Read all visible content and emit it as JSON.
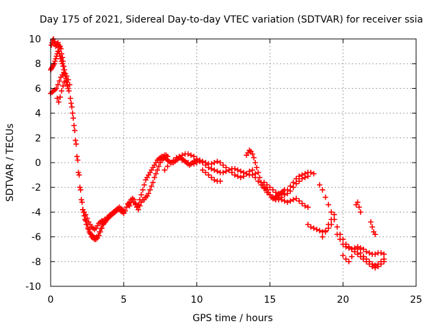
{
  "chart_data": {
    "type": "scatter",
    "title": "Day 175 of 2021, Sidereal Day-to-day VTEC variation (SDTVAR) for receiver ssia",
    "xlabel": "GPS time / hours",
    "ylabel": "SDTVAR / TECUs",
    "xlim": [
      0,
      25
    ],
    "ylim": [
      -10,
      10
    ],
    "xticks": [
      0,
      5,
      10,
      15,
      20,
      25
    ],
    "yticks": [
      -10,
      -8,
      -6,
      -4,
      -2,
      0,
      2,
      4,
      6,
      8,
      10
    ],
    "grid": true,
    "marker": "+",
    "series": [
      {
        "name": "SDTVAR",
        "color": "#ff0000",
        "x": [
          0.05,
          0.1,
          0.15,
          0.2,
          0.25,
          0.3,
          0.35,
          0.4,
          0.45,
          0.5,
          0.55,
          0.6,
          0.65,
          0.7,
          0.75,
          0.8,
          0.85,
          0.9,
          0.95,
          1.0,
          0.0,
          0.05,
          0.1,
          0.15,
          0.2,
          0.25,
          0.3,
          0.35,
          0.4,
          0.45,
          0.5,
          0.55,
          0.6,
          0.65,
          0.7,
          0.75,
          0.8,
          0.85,
          0.9,
          0.95,
          1.0,
          1.05,
          1.1,
          1.15,
          1.2,
          0.0,
          0.1,
          0.2,
          0.3,
          0.4,
          0.5,
          0.6,
          0.7,
          0.8,
          0.9,
          1.0,
          1.1,
          1.2,
          1.3,
          0.45,
          0.55,
          0.65,
          0.75,
          0.85,
          0.95,
          1.05,
          1.15,
          1.25,
          1.35,
          1.45,
          1.55,
          1.65,
          1.75,
          1.85,
          1.95,
          2.05,
          2.15,
          2.25,
          2.35,
          2.45,
          2.55,
          2.65,
          2.75,
          2.85,
          2.95,
          3.05,
          3.15,
          3.25,
          3.35,
          3.45,
          3.55,
          3.65,
          3.75,
          3.85,
          3.95,
          1.4,
          1.5,
          1.6,
          1.7,
          1.8,
          1.9,
          2.0,
          2.1,
          2.2,
          2.3,
          2.4,
          2.5,
          2.6,
          2.7,
          2.8,
          2.9,
          3.0,
          3.1,
          3.2,
          3.3,
          3.4,
          3.5,
          3.6,
          3.7,
          3.8,
          3.9,
          4.0,
          4.1,
          4.2,
          4.3,
          4.4,
          4.5,
          4.6,
          4.7,
          4.8,
          4.9,
          5.0,
          2.2,
          2.3,
          2.4,
          2.5,
          2.6,
          2.7,
          2.8,
          2.9,
          3.0,
          3.1,
          3.2,
          3.3,
          3.4,
          3.5,
          3.6,
          3.7,
          3.8,
          3.9,
          4.0,
          4.1,
          4.2,
          4.3,
          4.4,
          4.5,
          4.6,
          4.7,
          4.8,
          4.9,
          5.0,
          5.1,
          5.2,
          5.3,
          5.4,
          5.5,
          5.6,
          5.7,
          5.8,
          5.9,
          6.0,
          6.1,
          6.2,
          6.3,
          6.4,
          6.5,
          6.6,
          6.7,
          6.8,
          6.9,
          7.0,
          7.1,
          7.2,
          7.3,
          7.4,
          7.5,
          7.6,
          7.7,
          7.8,
          7.9,
          8.0,
          5.3,
          5.4,
          5.5,
          5.6,
          5.7,
          5.8,
          5.9,
          6.0,
          6.1,
          6.2,
          6.3,
          6.4,
          6.5,
          6.6,
          6.7,
          6.8,
          6.9,
          7.0,
          7.1,
          7.2,
          7.3,
          7.4,
          7.5,
          7.6,
          7.7,
          7.8,
          7.9,
          8.0,
          8.1,
          8.2,
          8.3,
          8.4,
          8.5,
          8.6,
          8.7,
          8.8,
          8.9,
          9.0,
          9.1,
          9.2,
          9.3,
          9.4,
          9.5,
          9.6,
          9.7,
          9.8,
          9.9,
          10.0,
          7.8,
          8.0,
          8.2,
          8.4,
          8.6,
          8.8,
          9.0,
          9.2,
          9.4,
          9.6,
          9.8,
          10.0,
          10.2,
          10.4,
          10.6,
          10.8,
          11.0,
          11.2,
          11.4,
          11.6,
          11.8,
          12.0,
          12.2,
          12.4,
          12.6,
          12.8,
          13.0,
          13.2,
          13.4,
          13.6,
          13.8,
          9.0,
          9.2,
          9.4,
          9.6,
          9.8,
          10.0,
          10.2,
          10.4,
          10.6,
          10.8,
          11.0,
          11.2,
          11.4,
          11.6,
          11.8,
          12.0,
          12.2,
          12.4,
          12.6,
          12.8,
          13.0,
          13.2,
          13.4,
          13.6,
          13.8,
          14.0,
          10.4,
          10.6,
          10.8,
          11.0,
          11.2,
          11.4,
          11.6,
          13.4,
          13.5,
          13.6,
          13.7,
          13.8,
          13.9,
          14.0,
          14.1,
          14.2,
          14.3,
          14.4,
          14.5,
          14.6,
          14.7,
          14.8,
          14.9,
          15.0,
          15.1,
          15.2,
          15.3,
          15.4,
          15.5,
          15.6,
          15.7,
          15.8,
          15.9,
          16.0,
          14.0,
          14.2,
          14.4,
          14.6,
          14.8,
          15.0,
          15.2,
          15.4,
          15.6,
          15.8,
          16.0,
          16.2,
          16.4,
          16.6,
          16.8,
          17.0,
          17.2,
          17.4,
          17.6,
          17.8,
          18.0,
          14.6,
          14.8,
          15.0,
          15.2,
          15.4,
          15.6,
          15.8,
          16.0,
          16.2,
          16.4,
          16.6,
          16.8,
          17.0,
          17.2,
          17.4,
          17.6,
          15.4,
          15.6,
          15.8,
          16.0,
          16.2,
          16.4,
          16.6,
          16.8,
          17.0,
          17.2,
          17.4,
          17.6,
          17.6,
          17.8,
          18.0,
          18.2,
          18.4,
          18.6,
          18.8,
          19.0,
          19.2,
          19.4,
          18.4,
          18.6,
          18.8,
          19.0,
          19.2,
          19.4,
          19.6,
          19.8,
          20.0,
          20.2,
          20.4,
          20.6,
          20.8,
          21.0,
          21.2,
          21.4,
          21.6,
          21.8,
          22.0,
          22.2,
          22.4,
          22.6,
          22.8,
          19.6,
          19.8,
          20.0,
          20.2,
          20.4,
          20.6,
          20.8,
          21.0,
          21.2,
          21.4,
          21.6,
          21.8,
          22.0,
          22.2,
          22.4,
          22.6,
          22.8,
          20.0,
          20.2,
          20.4,
          20.6,
          20.8,
          21.0,
          21.2,
          21.4,
          21.4,
          21.6,
          21.8,
          22.0,
          22.2,
          22.4,
          22.6,
          22.8,
          18.6,
          18.8,
          19.0,
          19.2,
          19.4,
          20.9,
          21.0,
          21.1,
          21.2,
          21.9,
          22.0,
          22.1,
          22.2
        ],
        "y": [
          9.5,
          9.7,
          9.9,
          10.0,
          9.8,
          9.6,
          9.4,
          9.5,
          9.6,
          9.7,
          9.5,
          9.3,
          9.4,
          9.2,
          8.8,
          8.5,
          8.2,
          7.8,
          7.5,
          7.2,
          7.5,
          7.6,
          7.7,
          7.8,
          7.9,
          8.0,
          8.2,
          8.4,
          8.6,
          8.8,
          9.0,
          9.0,
          8.8,
          8.6,
          8.4,
          8.2,
          8.0,
          7.8,
          7.5,
          7.2,
          7.0,
          6.8,
          6.5,
          6.2,
          6.0,
          5.6,
          5.7,
          5.8,
          5.9,
          6.0,
          6.3,
          6.6,
          6.9,
          7.1,
          7.3,
          7.2,
          7.0,
          6.7,
          6.3,
          5.2,
          4.9,
          5.3,
          5.8,
          6.2,
          6.5,
          6.6,
          6.3,
          5.8,
          5.2,
          4.5,
          3.6,
          2.6,
          1.5,
          0.2,
          -1.0,
          -2.2,
          -3.2,
          -4.0,
          -4.6,
          -5.0,
          -5.3,
          -5.6,
          -5.8,
          -5.9,
          -6.0,
          -6.1,
          -6.0,
          -5.9,
          -5.6,
          -5.3,
          -5.0,
          -4.9,
          -4.8,
          -4.6,
          -4.5,
          4.8,
          4.0,
          3.0,
          1.8,
          0.5,
          -0.8,
          -2.0,
          -3.0,
          -3.8,
          -4.3,
          -4.7,
          -5.0,
          -5.4,
          -5.7,
          -6.0,
          -6.1,
          -6.2,
          -6.2,
          -6.1,
          -5.9,
          -5.6,
          -5.3,
          -5.0,
          -4.8,
          -4.6,
          -4.4,
          -4.3,
          -4.2,
          -4.1,
          -4.0,
          -3.9,
          -3.8,
          -3.7,
          -3.6,
          -3.7,
          -3.8,
          -3.9,
          -3.8,
          -4.0,
          -4.2,
          -4.5,
          -4.8,
          -5.0,
          -5.2,
          -5.3,
          -5.4,
          -5.3,
          -5.1,
          -4.9,
          -4.8,
          -4.7,
          -4.7,
          -4.6,
          -4.6,
          -4.5,
          -4.4,
          -4.3,
          -4.2,
          -4.1,
          -4.0,
          -3.9,
          -3.8,
          -3.8,
          -3.9,
          -4.0,
          -4.1,
          -3.9,
          -3.6,
          -3.4,
          -3.2,
          -3.0,
          -3.0,
          -3.2,
          -3.4,
          -3.6,
          -3.4,
          -3.0,
          -2.6,
          -2.2,
          -1.8,
          -1.4,
          -1.2,
          -1.0,
          -0.8,
          -0.6,
          -0.4,
          -0.2,
          0.0,
          0.2,
          0.3,
          0.4,
          0.5,
          0.5,
          0.6,
          0.6,
          0.5,
          -3.3,
          -3.5,
          -3.2,
          -2.9,
          -3.0,
          -3.3,
          -3.6,
          -3.8,
          -3.5,
          -3.2,
          -3.0,
          -3.0,
          -2.8,
          -2.7,
          -2.5,
          -2.2,
          -1.9,
          -1.6,
          -1.2,
          -0.9,
          -0.6,
          -0.3,
          0.0,
          0.2,
          0.3,
          0.4,
          0.3,
          0.2,
          0.1,
          0.0,
          0.0,
          0.0,
          0.1,
          0.2,
          0.3,
          0.4,
          0.4,
          0.3,
          0.2,
          0.1,
          0.0,
          -0.1,
          -0.2,
          -0.1,
          0.0,
          0.1,
          0.1,
          0.2,
          -0.6,
          -0.3,
          0.0,
          0.2,
          0.4,
          0.5,
          0.6,
          0.7,
          0.7,
          0.6,
          0.5,
          0.3,
          0.2,
          0.1,
          0.0,
          -0.1,
          -0.1,
          0.0,
          0.1,
          0.0,
          -0.2,
          -0.4,
          -0.6,
          -0.8,
          -1.0,
          -1.1,
          -1.2,
          -1.1,
          -0.9,
          -0.7,
          -0.6,
          0.2,
          0.1,
          0.0,
          -0.1,
          -0.1,
          0.0,
          0.1,
          0.0,
          -0.2,
          -0.4,
          -0.5,
          -0.6,
          -0.7,
          -0.8,
          -0.8,
          -0.7,
          -0.6,
          -0.5,
          -0.5,
          -0.6,
          -0.7,
          -0.8,
          -0.9,
          -1.0,
          -1.0,
          -0.9,
          -0.6,
          -0.8,
          -1.0,
          -1.2,
          -1.4,
          -1.5,
          -1.5,
          0.6,
          0.8,
          1.0,
          0.9,
          0.7,
          0.4,
          0.0,
          -0.4,
          -0.8,
          -1.2,
          -1.6,
          -1.8,
          -2.0,
          -2.1,
          -2.2,
          -2.4,
          -2.6,
          -2.8,
          -2.9,
          -2.9,
          -2.8,
          -2.7,
          -2.6,
          -2.5,
          -2.4,
          -2.3,
          -2.2,
          -1.2,
          -1.5,
          -1.8,
          -2.1,
          -2.4,
          -2.6,
          -2.8,
          -3.0,
          -3.0,
          -2.8,
          -2.5,
          -2.2,
          -1.9,
          -1.6,
          -1.3,
          -1.1,
          -1.0,
          -0.9,
          -0.8,
          -0.8,
          -0.9,
          -1.6,
          -1.8,
          -2.0,
          -2.2,
          -2.4,
          -2.5,
          -2.6,
          -2.6,
          -2.5,
          -2.3,
          -2.0,
          -1.7,
          -1.5,
          -1.3,
          -1.2,
          -1.1,
          -2.7,
          -2.9,
          -3.0,
          -3.1,
          -3.2,
          -3.1,
          -3.0,
          -2.9,
          -3.1,
          -3.3,
          -3.5,
          -3.6,
          -5.0,
          -5.2,
          -5.3,
          -5.4,
          -5.5,
          -5.6,
          -5.5,
          -5.3,
          -5.0,
          -4.6,
          -1.8,
          -2.2,
          -2.8,
          -3.4,
          -4.0,
          -4.6,
          -5.2,
          -5.8,
          -6.2,
          -6.6,
          -6.8,
          -7.0,
          -7.2,
          -7.4,
          -7.6,
          -7.8,
          -8.0,
          -8.2,
          -8.4,
          -8.5,
          -8.4,
          -8.2,
          -8.0,
          -5.8,
          -6.2,
          -6.6,
          -6.8,
          -6.9,
          -7.0,
          -6.9,
          -6.8,
          -6.9,
          -7.0,
          -7.2,
          -7.3,
          -7.4,
          -7.4,
          -7.3,
          -7.3,
          -7.4,
          -7.5,
          -7.8,
          -8.0,
          -7.6,
          -7.2,
          -7.0,
          -7.3,
          -7.6,
          -7.6,
          -7.8,
          -8.0,
          -8.2,
          -8.3,
          -8.2,
          -8.0,
          -7.8,
          -6.0,
          -5.6,
          -5.0,
          -4.6,
          -4.2,
          -3.4,
          -3.2,
          -3.6,
          -4.0,
          -4.8,
          -5.2,
          -5.6,
          -5.8
        ]
      }
    ]
  }
}
